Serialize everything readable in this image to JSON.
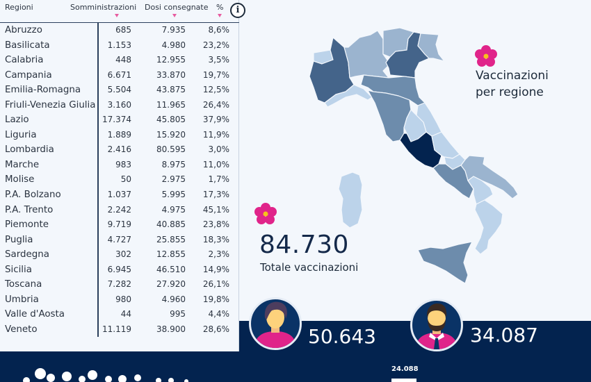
{
  "table": {
    "headers": {
      "regioni": "Regioni",
      "somministrazioni": "Somministrazioni",
      "dosi": "Dosi consegnate",
      "pct": "%"
    },
    "info_icon": "i",
    "rows": [
      {
        "regione": "Abruzzo",
        "somministrazioni": "685",
        "dosi": "7.935",
        "pct": "8,6%"
      },
      {
        "regione": "Basilicata",
        "somministrazioni": "1.153",
        "dosi": "4.980",
        "pct": "23,2%"
      },
      {
        "regione": "Calabria",
        "somministrazioni": "448",
        "dosi": "12.955",
        "pct": "3,5%"
      },
      {
        "regione": "Campania",
        "somministrazioni": "6.671",
        "dosi": "33.870",
        "pct": "19,7%"
      },
      {
        "regione": "Emilia-Romagna",
        "somministrazioni": "5.504",
        "dosi": "43.875",
        "pct": "12,5%"
      },
      {
        "regione": "Friuli-Venezia Giulia",
        "somministrazioni": "3.160",
        "dosi": "11.965",
        "pct": "26,4%"
      },
      {
        "regione": "Lazio",
        "somministrazioni": "17.374",
        "dosi": "45.805",
        "pct": "37,9%"
      },
      {
        "regione": "Liguria",
        "somministrazioni": "1.889",
        "dosi": "15.920",
        "pct": "11,9%"
      },
      {
        "regione": "Lombardia",
        "somministrazioni": "2.416",
        "dosi": "80.595",
        "pct": "3,0%"
      },
      {
        "regione": "Marche",
        "somministrazioni": "983",
        "dosi": "8.975",
        "pct": "11,0%"
      },
      {
        "regione": "Molise",
        "somministrazioni": "50",
        "dosi": "2.975",
        "pct": "1,7%"
      },
      {
        "regione": "P.A. Bolzano",
        "somministrazioni": "1.037",
        "dosi": "5.995",
        "pct": "17,3%"
      },
      {
        "regione": "P.A. Trento",
        "somministrazioni": "2.242",
        "dosi": "4.975",
        "pct": "45,1%"
      },
      {
        "regione": "Piemonte",
        "somministrazioni": "9.719",
        "dosi": "40.885",
        "pct": "23,8%"
      },
      {
        "regione": "Puglia",
        "somministrazioni": "4.727",
        "dosi": "25.855",
        "pct": "18,3%"
      },
      {
        "regione": "Sardegna",
        "somministrazioni": "302",
        "dosi": "12.855",
        "pct": "2,3%"
      },
      {
        "regione": "Sicilia",
        "somministrazioni": "6.945",
        "dosi": "46.510",
        "pct": "14,9%"
      },
      {
        "regione": "Toscana",
        "somministrazioni": "7.282",
        "dosi": "27.920",
        "pct": "26,1%"
      },
      {
        "regione": "Umbria",
        "somministrazioni": "980",
        "dosi": "4.960",
        "pct": "19,8%"
      },
      {
        "regione": "Valle d'Aosta",
        "somministrazioni": "44",
        "dosi": "995",
        "pct": "4,4%"
      },
      {
        "regione": "Veneto",
        "somministrazioni": "11.119",
        "dosi": "38.900",
        "pct": "28,6%"
      }
    ]
  },
  "map": {
    "title_line1": "Vaccinazioni",
    "title_line2": "per regione",
    "colors": {
      "darkest": "#03234f",
      "dark": "#44648a",
      "mid": "#6d8cac",
      "light": "#9bb4cf",
      "lightest": "#bcd3ea"
    }
  },
  "totals": {
    "value": "84.730",
    "label": "Totale vaccinazioni",
    "female": "50.643",
    "male": "34.087"
  },
  "bottom_chart": {
    "visible_label": "24.088"
  },
  "colors": {
    "navy": "#03234f",
    "accent_pink": "#e0248a",
    "flower_center": "#f7c21b"
  }
}
